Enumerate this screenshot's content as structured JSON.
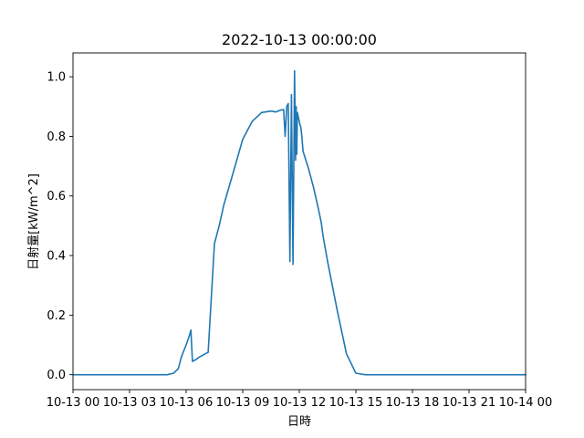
{
  "chart_data": {
    "type": "line",
    "title": "2022-10-13 00:00:00",
    "xlabel": "日時",
    "ylabel": "日射量[kW/m^2]",
    "x_ticks": [
      {
        "hour": 0,
        "label": "10-13 00"
      },
      {
        "hour": 3,
        "label": "10-13 03"
      },
      {
        "hour": 6,
        "label": "10-13 06"
      },
      {
        "hour": 9,
        "label": "10-13 09"
      },
      {
        "hour": 12,
        "label": "10-13 12"
      },
      {
        "hour": 15,
        "label": "10-13 15"
      },
      {
        "hour": 18,
        "label": "10-13 18"
      },
      {
        "hour": 21,
        "label": "10-13 21"
      },
      {
        "hour": 24,
        "label": "10-14 00"
      }
    ],
    "y_ticks": [
      {
        "value": 0.0,
        "label": "0.0"
      },
      {
        "value": 0.2,
        "label": "0.2"
      },
      {
        "value": 0.4,
        "label": "0.4"
      },
      {
        "value": 0.6,
        "label": "0.6"
      },
      {
        "value": 0.8,
        "label": "0.8"
      },
      {
        "value": 1.0,
        "label": "1.0"
      }
    ],
    "xlim": [
      "2022-10-13 00:00",
      "2022-10-14 00:00"
    ],
    "ylim": [
      -0.05,
      1.08
    ],
    "grid": false,
    "color": "#1f77b4",
    "series": [
      {
        "x": [
          "2022-10-13 00:00",
          "2022-10-13 05:00",
          "2022-10-13 05:20",
          "2022-10-13 05:35",
          "2022-10-13 05:45",
          "2022-10-13 06:00",
          "2022-10-13 06:10",
          "2022-10-13 06:15",
          "2022-10-13 06:20",
          "2022-10-13 06:30",
          "2022-10-13 06:40",
          "2022-10-13 06:50",
          "2022-10-13 07:00",
          "2022-10-13 07:10",
          "2022-10-13 07:30",
          "2022-10-13 07:45",
          "2022-10-13 08:00",
          "2022-10-13 08:15",
          "2022-10-13 08:30",
          "2022-10-13 09:00",
          "2022-10-13 09:30",
          "2022-10-13 10:00",
          "2022-10-13 10:30",
          "2022-10-13 10:45",
          "2022-10-13 11:00",
          "2022-10-13 11:10",
          "2022-10-13 11:15",
          "2022-10-13 11:20",
          "2022-10-13 11:25",
          "2022-10-13 11:30",
          "2022-10-13 11:35",
          "2022-10-13 11:40",
          "2022-10-13 11:45",
          "2022-10-13 11:48",
          "2022-10-13 11:50",
          "2022-10-13 11:52",
          "2022-10-13 11:54",
          "2022-10-13 11:56",
          "2022-10-13 11:58",
          "2022-10-13 12:00",
          "2022-10-13 12:02",
          "2022-10-13 12:05",
          "2022-10-13 12:08",
          "2022-10-13 12:12",
          "2022-10-13 12:30",
          "2022-10-13 12:45",
          "2022-10-13 13:00",
          "2022-10-13 13:10",
          "2022-10-13 13:15",
          "2022-10-13 13:30",
          "2022-10-13 14:00",
          "2022-10-13 14:30",
          "2022-10-13 15:00",
          "2022-10-13 15:30",
          "2022-10-13 15:45",
          "2022-10-13 16:00",
          "2022-10-13 16:15",
          "2022-10-13 17:00",
          "2022-10-13 20:00",
          "2022-10-14 00:00"
        ],
        "y": [
          0.0,
          0.0,
          0.005,
          0.02,
          0.06,
          0.1,
          0.13,
          0.15,
          0.045,
          0.05,
          0.058,
          0.064,
          0.07,
          0.075,
          0.44,
          0.5,
          0.57,
          0.625,
          0.68,
          0.79,
          0.85,
          0.88,
          0.885,
          0.882,
          0.888,
          0.89,
          0.8,
          0.9,
          0.91,
          0.38,
          0.94,
          0.37,
          1.02,
          0.72,
          0.9,
          0.74,
          0.88,
          0.87,
          0.86,
          0.85,
          0.84,
          0.83,
          0.8,
          0.75,
          0.69,
          0.63,
          0.56,
          0.51,
          0.47,
          0.38,
          0.22,
          0.07,
          0.005,
          0.0,
          0.0,
          0.0,
          0.0,
          0.0,
          0.0,
          0.0
        ]
      }
    ]
  }
}
